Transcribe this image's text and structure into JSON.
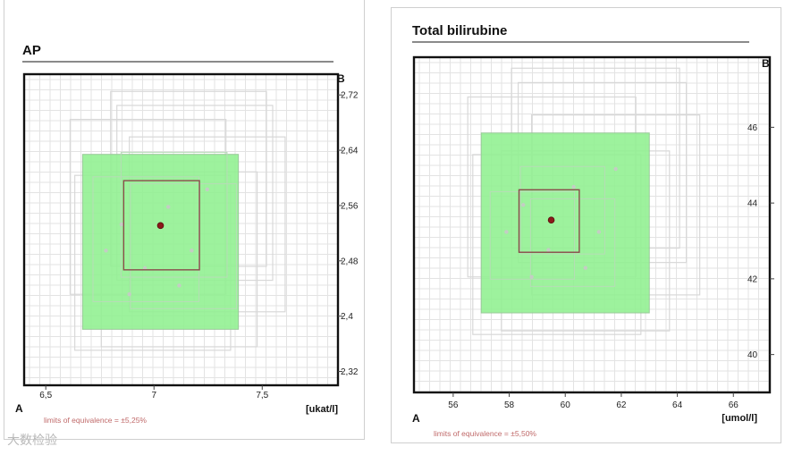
{
  "watermark": "大数检验",
  "chart_data": [
    {
      "type": "scatter",
      "title": "AP",
      "x_method_label": "A",
      "y_method_label": "B",
      "unit_label": "[ukat/l]",
      "xlim": [
        6.4,
        7.85
      ],
      "ylim": [
        2.3,
        2.75
      ],
      "x_ticks": [
        "6,5",
        "7",
        "7,5"
      ],
      "x_tick_values": [
        6.5,
        7,
        7.5
      ],
      "y_ticks": [
        "2,32",
        "2,4",
        "2,48",
        "2,56",
        "2,64",
        "2,72"
      ],
      "y_tick_values": [
        2.32,
        2.4,
        2.48,
        2.56,
        2.64,
        2.72
      ],
      "equivalence_box": {
        "x": [
          6.67,
          7.39
        ],
        "y": [
          2.381,
          2.634
        ]
      },
      "inner_box": {
        "x": [
          6.86,
          7.21
        ],
        "y": [
          2.467,
          2.596
        ]
      },
      "mean_point": {
        "x": 7.03,
        "y": 2.531
      },
      "limits_note": "limits of equivalence = ±5,25%"
    },
    {
      "type": "scatter",
      "title": "Total bilirubine",
      "x_method_label": "A",
      "y_method_label": "B",
      "unit_label": "[umol/l]",
      "xlim": [
        54.6,
        67.3
      ],
      "ylim": [
        39.0,
        47.85
      ],
      "x_ticks": [
        "56",
        "58",
        "60",
        "62",
        "64",
        "66"
      ],
      "x_tick_values": [
        56,
        58,
        60,
        62,
        64,
        66
      ],
      "y_ticks": [
        "40",
        "42",
        "44",
        "46"
      ],
      "y_tick_values": [
        40,
        42,
        44,
        46
      ],
      "equivalence_box": {
        "x": [
          57.0,
          63.0
        ],
        "y": [
          41.1,
          45.85
        ]
      },
      "inner_box": {
        "x": [
          58.35,
          60.5
        ],
        "y": [
          42.7,
          44.35
        ]
      },
      "mean_point": {
        "x": 59.5,
        "y": 43.55
      },
      "limits_note": "limits of equivalence = ±5,50%"
    }
  ]
}
